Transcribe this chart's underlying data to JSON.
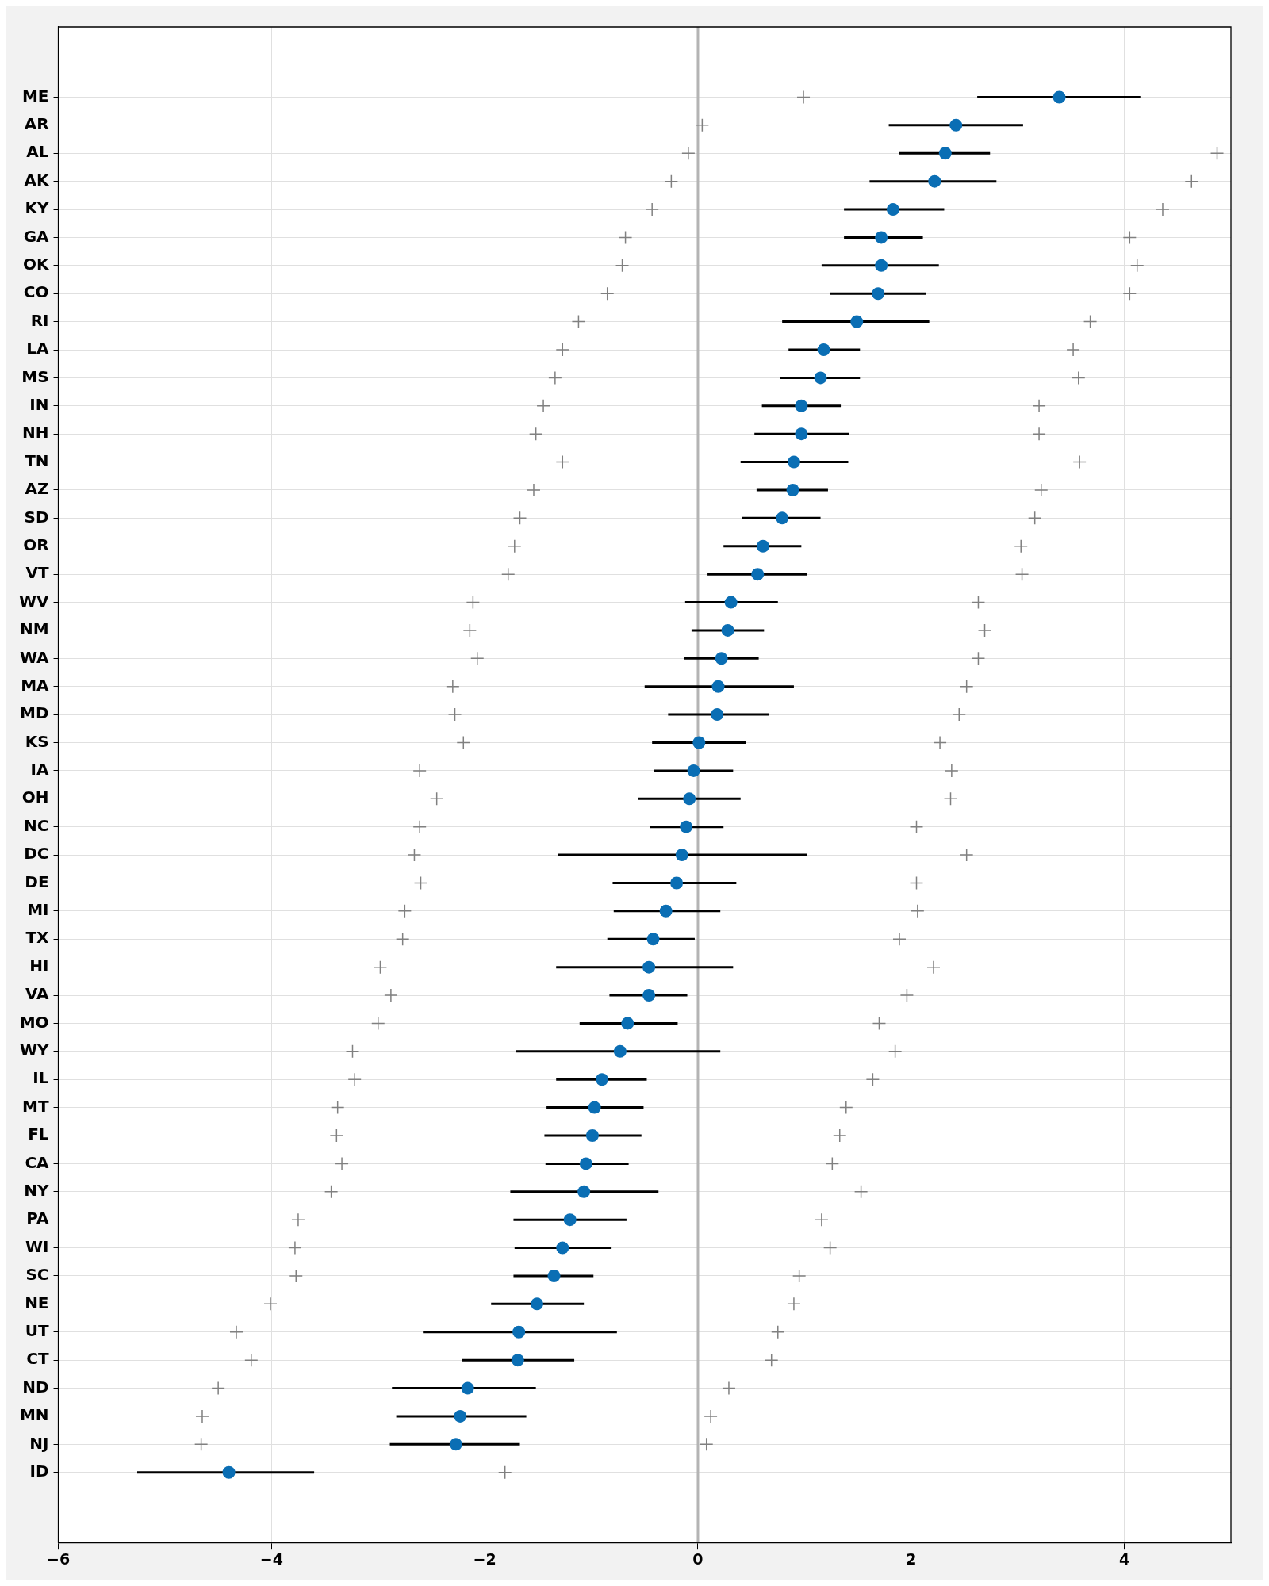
{
  "chart_data": {
    "type": "scatter",
    "orientation": "horizontal",
    "grid": true,
    "legend": false,
    "categories": [
      "ME",
      "AR",
      "AL",
      "AK",
      "KY",
      "GA",
      "OK",
      "CO",
      "RI",
      "LA",
      "MS",
      "IN",
      "NH",
      "TN",
      "AZ",
      "SD",
      "OR",
      "VT",
      "WV",
      "NM",
      "WA",
      "MA",
      "MD",
      "KS",
      "IA",
      "OH",
      "NC",
      "DC",
      "DE",
      "MI",
      "TX",
      "HI",
      "VA",
      "MO",
      "WY",
      "IL",
      "MT",
      "FL",
      "CA",
      "NY",
      "PA",
      "WI",
      "SC",
      "NE",
      "UT",
      "CT",
      "ND",
      "MN",
      "NJ",
      "ID"
    ],
    "xlim": [
      -6,
      5
    ],
    "xticks": [
      -6,
      -4,
      -2,
      0,
      2,
      4
    ],
    "ref_lines": [
      {
        "axis": "x",
        "value": 0,
        "color": "#b4b4b4"
      }
    ],
    "series": [
      {
        "type": "scatter",
        "marker": "circle",
        "color": "#0a6eb4",
        "values": [
          3.39,
          2.42,
          2.32,
          2.22,
          1.83,
          1.72,
          1.72,
          1.69,
          1.49,
          1.18,
          1.15,
          0.97,
          0.97,
          0.9,
          0.89,
          0.79,
          0.61,
          0.56,
          0.31,
          0.28,
          0.22,
          0.19,
          0.18,
          0.01,
          -0.04,
          -0.08,
          -0.11,
          -0.15,
          -0.2,
          -0.3,
          -0.42,
          -0.46,
          -0.46,
          -0.66,
          -0.73,
          -0.9,
          -0.97,
          -0.99,
          -1.05,
          -1.07,
          -1.2,
          -1.27,
          -1.35,
          -1.51,
          -1.68,
          -1.69,
          -2.16,
          -2.23,
          -2.27,
          -4.4
        ],
        "errors": [
          [
            2.62,
            4.15
          ],
          [
            1.79,
            3.05
          ],
          [
            1.89,
            2.74
          ],
          [
            1.61,
            2.8
          ],
          [
            1.37,
            2.31
          ],
          [
            1.37,
            2.11
          ],
          [
            1.16,
            2.26
          ],
          [
            1.24,
            2.14
          ],
          [
            0.79,
            2.17
          ],
          [
            0.85,
            1.52
          ],
          [
            0.77,
            1.52
          ],
          [
            0.6,
            1.34
          ],
          [
            0.53,
            1.42
          ],
          [
            0.4,
            1.41
          ],
          [
            0.55,
            1.22
          ],
          [
            0.41,
            1.15
          ],
          [
            0.24,
            0.97
          ],
          [
            0.09,
            1.02
          ],
          [
            -0.12,
            0.75
          ],
          [
            -0.06,
            0.62
          ],
          [
            -0.13,
            0.57
          ],
          [
            -0.5,
            0.9
          ],
          [
            -0.28,
            0.67
          ],
          [
            -0.43,
            0.45
          ],
          [
            -0.41,
            0.33
          ],
          [
            -0.56,
            0.4
          ],
          [
            -0.45,
            0.24
          ],
          [
            -1.31,
            1.02
          ],
          [
            -0.8,
            0.36
          ],
          [
            -0.79,
            0.21
          ],
          [
            -0.85,
            -0.03
          ],
          [
            -1.33,
            0.33
          ],
          [
            -0.83,
            -0.1
          ],
          [
            -1.11,
            -0.19
          ],
          [
            -1.71,
            0.21
          ],
          [
            -1.33,
            -0.48
          ],
          [
            -1.42,
            -0.51
          ],
          [
            -1.44,
            -0.53
          ],
          [
            -1.43,
            -0.65
          ],
          [
            -1.76,
            -0.37
          ],
          [
            -1.73,
            -0.67
          ],
          [
            -1.72,
            -0.81
          ],
          [
            -1.73,
            -0.98
          ],
          [
            -1.94,
            -1.07
          ],
          [
            -2.58,
            -0.76
          ],
          [
            -2.21,
            -1.16
          ],
          [
            -2.87,
            -1.52
          ],
          [
            -2.83,
            -1.61
          ],
          [
            -2.89,
            -1.67
          ],
          [
            -5.26,
            -3.6
          ]
        ]
      },
      {
        "type": "scatter",
        "marker": "cross",
        "color": "#808080",
        "values": [
          0.99,
          0.04,
          -0.09,
          -0.25,
          -0.43,
          -0.68,
          -0.71,
          -0.85,
          -1.12,
          -1.27,
          -1.34,
          -1.45,
          -1.52,
          -1.27,
          -1.54,
          -1.67,
          -1.72,
          -1.78,
          -2.11,
          -2.14,
          -2.07,
          -2.3,
          -2.28,
          -2.2,
          -2.61,
          -2.45,
          -2.61,
          -2.66,
          -2.6,
          -2.75,
          -2.77,
          -2.98,
          -2.88,
          -3.0,
          -3.24,
          -3.22,
          -3.38,
          -3.39,
          -3.34,
          -3.44,
          -3.75,
          -3.78,
          -3.77,
          -4.01,
          -4.33,
          -4.19,
          -4.5,
          -4.65,
          -4.66,
          null
        ]
      },
      {
        "type": "scatter",
        "marker": "cross",
        "color": "#808080",
        "values": [
          null,
          null,
          4.87,
          4.63,
          4.36,
          4.05,
          4.12,
          4.05,
          3.68,
          3.52,
          3.57,
          3.2,
          3.2,
          3.58,
          3.22,
          3.16,
          3.03,
          3.04,
          2.63,
          2.69,
          2.63,
          2.52,
          2.45,
          2.27,
          2.38,
          2.37,
          2.05,
          2.52,
          2.05,
          2.06,
          1.89,
          2.21,
          1.96,
          1.7,
          1.85,
          1.64,
          1.39,
          1.33,
          1.26,
          1.53,
          1.16,
          1.24,
          0.95,
          0.9,
          0.75,
          0.69,
          0.29,
          0.12,
          0.08,
          -1.81
        ]
      }
    ]
  }
}
